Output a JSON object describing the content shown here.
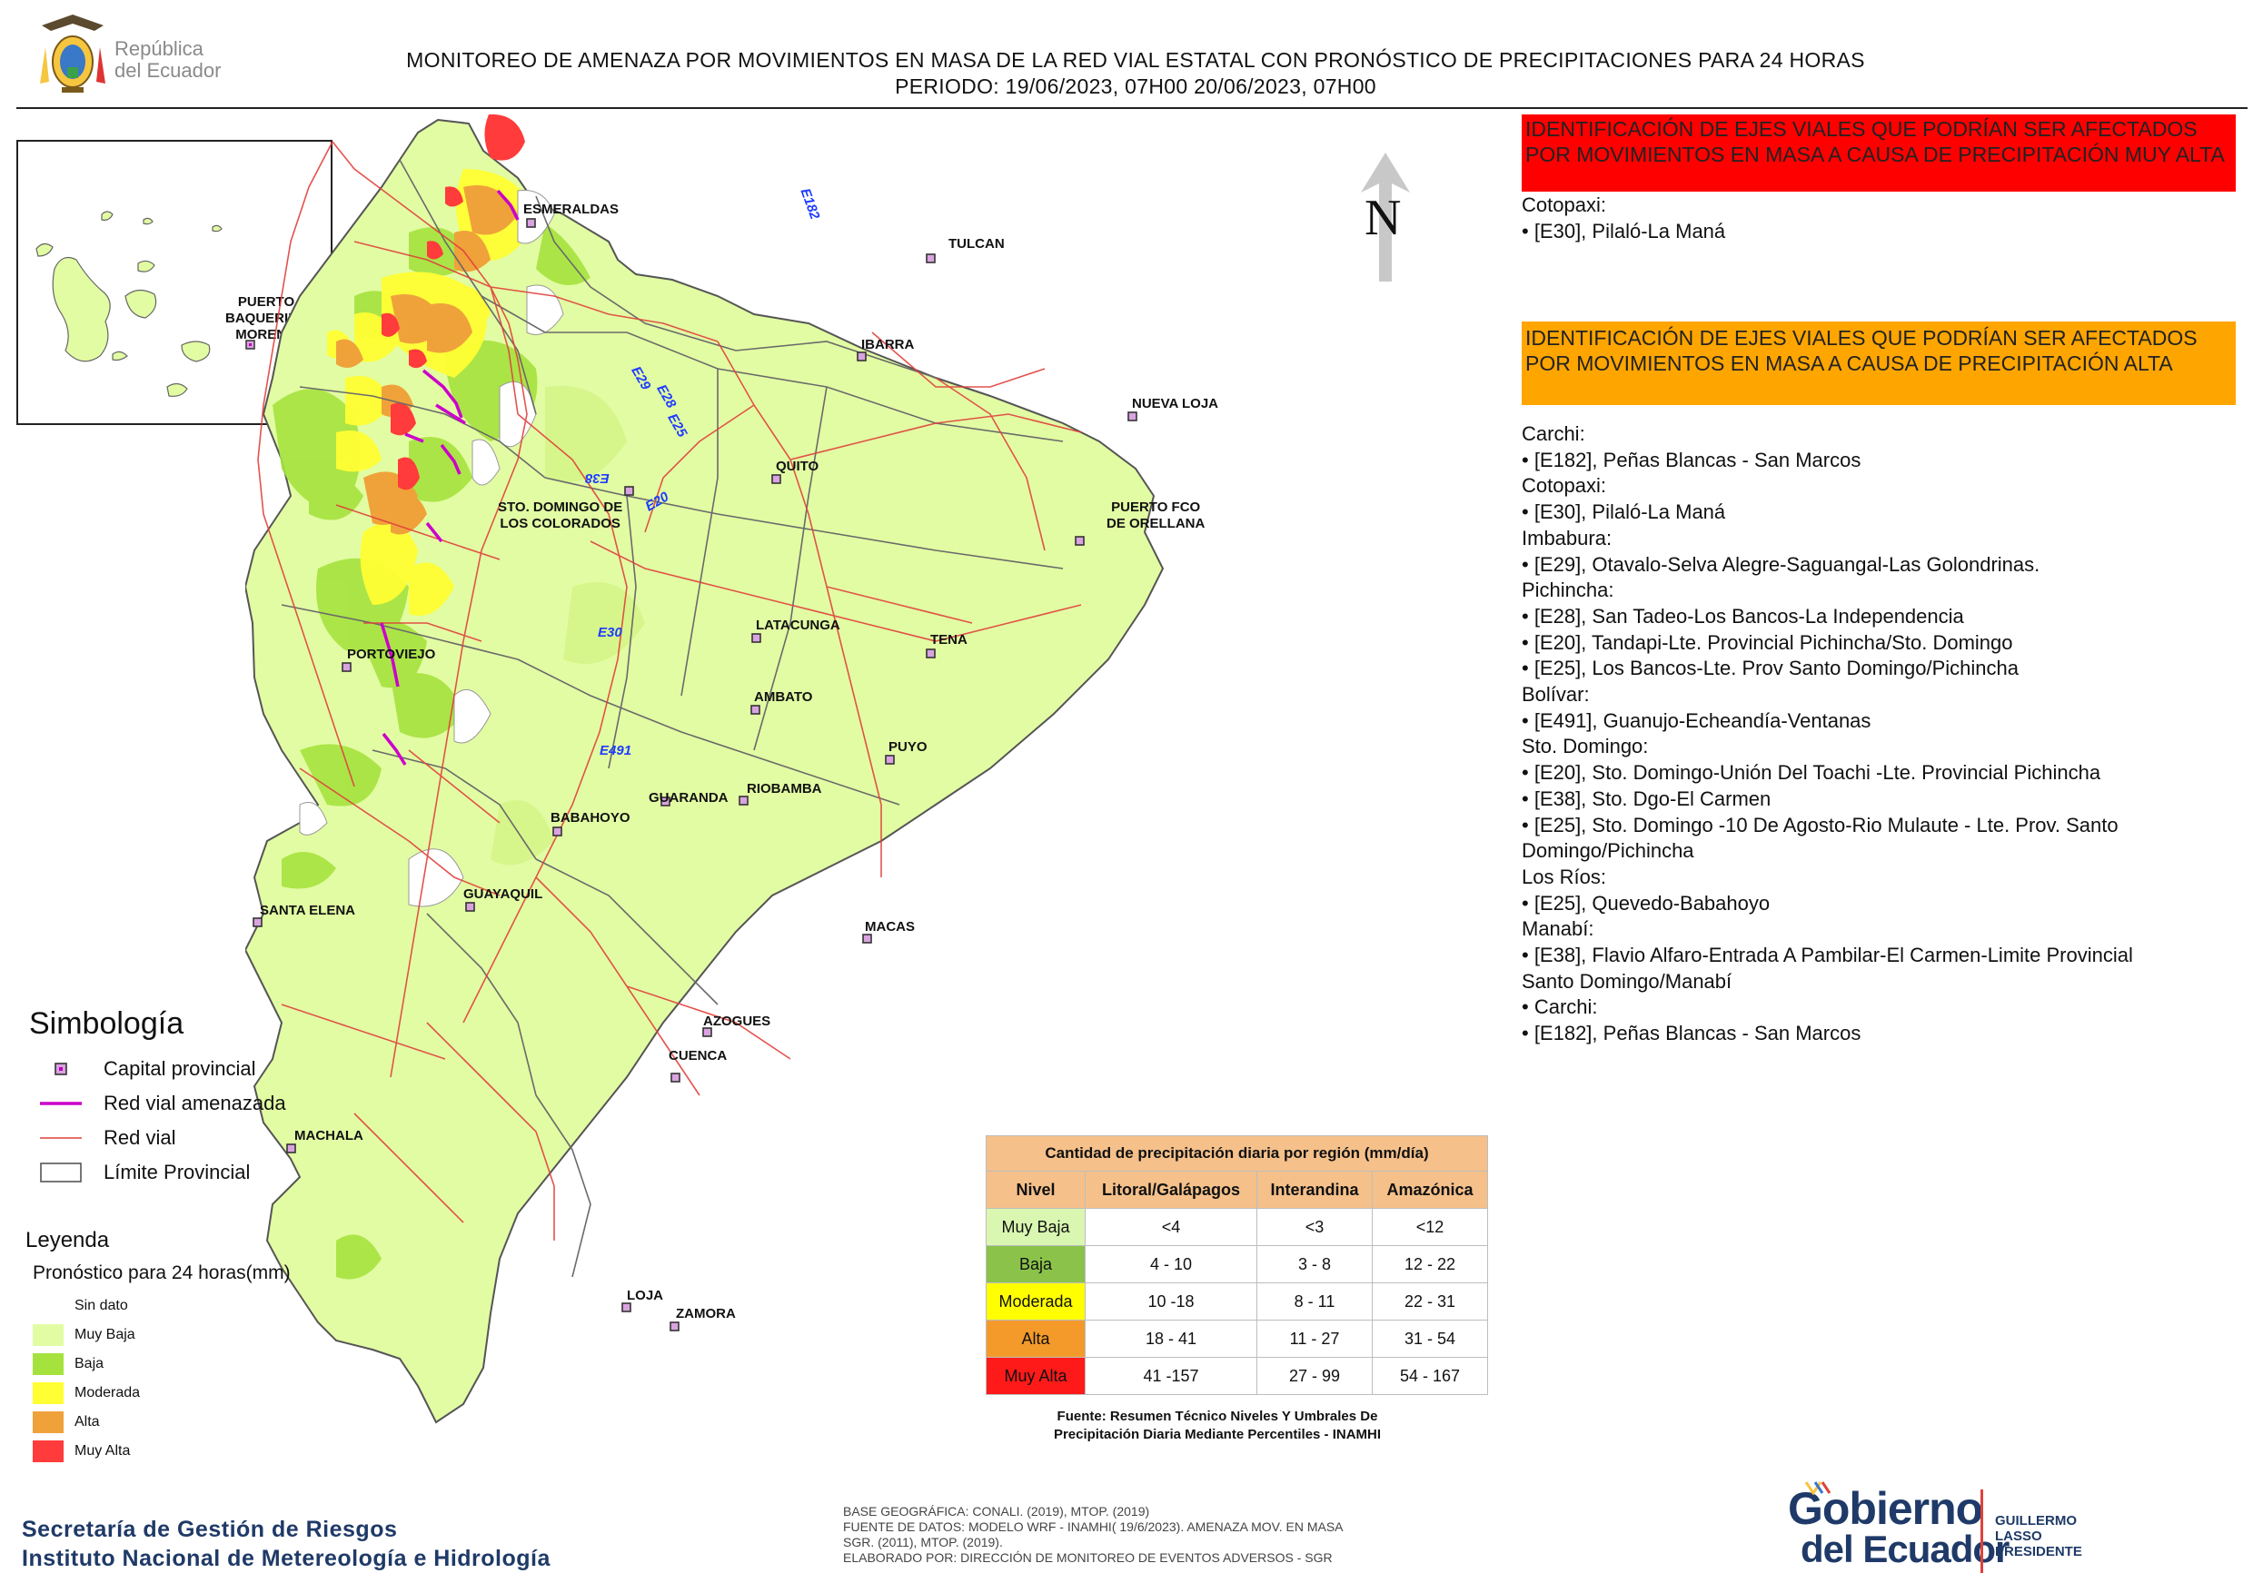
{
  "header": {
    "brand_line1": "República",
    "brand_line2": "del Ecuador",
    "title_line1": "MONITOREO DE AMENAZA POR MOVIMIENTOS EN MASA DE LA RED VIAL  ESTATAL  CON PRONÓSTICO  DE  PRECIPITACIONES PARA 24 HORAS",
    "title_line2": "PERIODO: 19/06/2023, 07H00 20/06/2023, 07H00"
  },
  "inset": {
    "city_line1": "PUERTO",
    "city_line2": "BAQUERIZO",
    "city_line3": "MORENO"
  },
  "north_label": "N",
  "cities": {
    "esmeraldas": "ESMERALDAS",
    "tulcan": "TULCAN",
    "ibarra": "IBARRA",
    "nueva_loja": "NUEVA LOJA",
    "quito": "QUITO",
    "sto_domingo_1": "STO. DOMINGO DE",
    "sto_domingo_2": "LOS COLORADOS",
    "puerto_fco_1": "PUERTO FCO",
    "puerto_fco_2": "DE ORELLANA",
    "portoviejo": "PORTOVIEJO",
    "latacunga": "LATACUNGA",
    "tena": "TENA",
    "ambato": "AMBATO",
    "puyo": "PUYO",
    "guaranda": "GUARANDA",
    "riobamba": "RIOBAMBA",
    "babahoyo": "BABAHOYO",
    "santa_elena": "SANTA ELENA",
    "guayaquil": "GUAYAQUIL",
    "macas": "MACAS",
    "azogues": "AZOGUES",
    "cuenca": "CUENCA",
    "machala": "MACHALA",
    "loja": "LOJA",
    "zamora": "ZAMORA"
  },
  "road_labels": {
    "e182": "E182",
    "e29": "E29",
    "e28": "E28",
    "e25": "E25",
    "e38": "E38",
    "e20": "E20",
    "e30": "E30",
    "e491": "E491"
  },
  "very_high": {
    "banner": "IDENTIFICACIÓN DE EJES VIALES QUE PODRÍAN SER AFECTADOS POR MOVIMIENTOS EN MASA A CAUSA DE PRECIPITACIÓN MUY ALTA",
    "lines": [
      "Cotopaxi:",
      "• [E30], Pilaló-La Maná"
    ]
  },
  "high": {
    "banner": "IDENTIFICACIÓN DE EJES VIALES QUE PODRÍAN SER AFECTADOS POR MOVIMIENTOS EN MASA A CAUSA DE PRECIPITACIÓN  ALTA",
    "lines": [
      "Carchi:",
      "• [E182], Peñas Blancas - San Marcos",
      "Cotopaxi:",
      "• [E30], Pilaló-La Maná",
      "Imbabura:",
      "• [E29], Otavalo-Selva Alegre-Saguangal-Las Golondrinas.",
      "Pichincha:",
      "• [E28], San Tadeo-Los Bancos-La Independencia",
      "• [E20], Tandapi-Lte. Provincial Pichincha/Sto. Domingo",
      "• [E25], Los Bancos-Lte. Prov Santo Domingo/Pichincha",
      "Bolívar:",
      "• [E491], Guanujo-Echeandía-Ventanas",
      "Sto. Domingo:",
      "• [E20], Sto. Domingo-Unión Del Toachi -Lte. Provincial Pichincha",
      "• [E38], Sto. Dgo-El Carmen",
      "• [E25], Sto. Domingo -10 De Agosto-Rio Mulaute - Lte. Prov. Santo",
      "Domingo/Pichincha",
      "Los Ríos:",
      "• [E25], Quevedo-Babahoyo",
      "Manabí:",
      "• [E38], Flavio Alfaro-Entrada A Pambilar-El Carmen-Limite Provincial",
      "Santo Domingo/Manabí",
      "• Carchi:",
      "• [E182], Peñas Blancas - San Marcos"
    ]
  },
  "symbology": {
    "title": "Simbología",
    "items": [
      "Capital provincial",
      "Red vial amenazada",
      "Red vial",
      "Límite Provincial"
    ]
  },
  "legend": {
    "title": "Leyenda",
    "subtitle": "Pronóstico para 24 horas(mm)",
    "items": [
      {
        "label": "Sin dato",
        "color": "#ffffff"
      },
      {
        "label": "Muy Baja",
        "color": "#e2fca3"
      },
      {
        "label": "Baja",
        "color": "#a6e23e"
      },
      {
        "label": "Moderada",
        "color": "#ffff33"
      },
      {
        "label": "Alta",
        "color": "#f0a23a"
      },
      {
        "label": "Muy Alta",
        "color": "#ff3b3b"
      }
    ]
  },
  "rain_table": {
    "caption": "Cantidad de precipitación diaria por región (mm/día)",
    "headers": [
      "Nivel",
      "Litoral/Galápagos",
      "Interandina",
      "Amazónica"
    ],
    "rows": [
      {
        "level": "Muy Baja",
        "color": "#d9f7b0",
        "litoral": "<4",
        "interandina": "<3",
        "amazonica": "<12"
      },
      {
        "level": "Baja",
        "color": "#8bc34a",
        "litoral": "4 - 10",
        "interandina": "3 - 8",
        "amazonica": "12 - 22"
      },
      {
        "level": "Moderada",
        "color": "#ffff00",
        "litoral": "10 -18",
        "interandina": "8 - 11",
        "amazonica": "22 - 31"
      },
      {
        "level": "Alta",
        "color": "#f39a2b",
        "litoral": "18 - 41",
        "interandina": "11 - 27",
        "amazonica": "31 - 54"
      },
      {
        "level": "Muy Alta",
        "color": "#ff1a1a",
        "litoral": "41 -157",
        "interandina": "27 - 99",
        "amazonica": "54 - 167"
      }
    ],
    "source_line1": "Fuente: Resumen Técnico Niveles Y Umbrales De",
    "source_line2": "Precipitación Diaria Mediante Percentiles - INAMHI"
  },
  "footer": {
    "org_line1": "Secretaría de Gestión de Riesgos",
    "org_line2": "Instituto Nacional de Metereología e Hidrología",
    "base_line1": "BASE GEOGRÁFICA: CONALI. (2019), MTOP. (2019)",
    "base_line2": "FUENTE DE DATOS: MODELO WRF - INAMHI( 19/6/2023).  AMENAZA MOV. EN MASA",
    "base_line3": "SGR. (2011), MTOP. (2019).",
    "base_line4": "ELABORADO POR: DIRECCIÓN DE MONITOREO DE EVENTOS ADVERSOS - SGR",
    "gob_line1": "Gobierno",
    "gob_line2": "del Ecuador",
    "president_line1": "GUILLERMO LASSO",
    "president_line2": "PRESIDENTE"
  }
}
